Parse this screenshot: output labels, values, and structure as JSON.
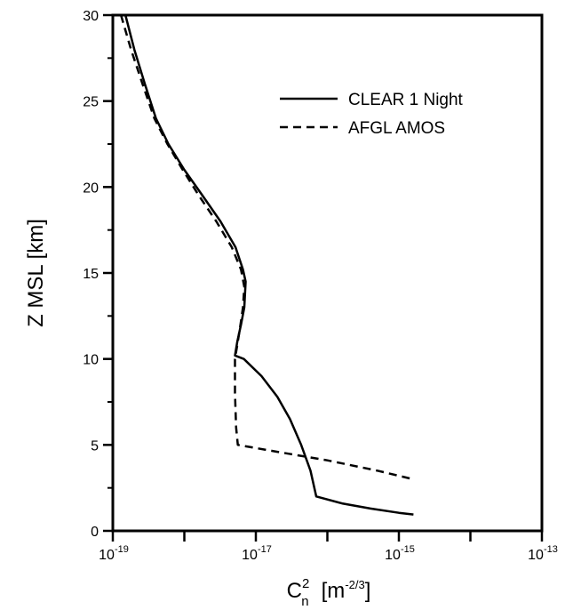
{
  "chart_data": {
    "type": "line",
    "ylabel": "Z MSL [km]",
    "xlabel_base": "C",
    "xlabel_sup": "2",
    "xlabel_sub": "n",
    "xlabel_units_open": "[m",
    "xlabel_units_exp": "-2/3",
    "xlabel_units_close": "]",
    "xscale": "log",
    "xlim": [
      1e-19,
      1e-13
    ],
    "ylim": [
      0,
      30
    ],
    "x_ticks": [
      {
        "base": "10",
        "exp": "-19",
        "value": 1e-19
      },
      {
        "base": "10",
        "exp": "-17",
        "value": 1e-17
      },
      {
        "base": "10",
        "exp": "-15",
        "value": 1e-15
      },
      {
        "base": "10",
        "exp": "-13",
        "value": 1e-13
      }
    ],
    "y_ticks": [
      "0",
      "5",
      "10",
      "15",
      "20",
      "25",
      "30"
    ],
    "legend_position": "top-right",
    "grid": false,
    "series": [
      {
        "name": "CLEAR 1 Night",
        "style": "solid",
        "points": [
          [
            1.5e-19,
            30
          ],
          [
            2e-19,
            28
          ],
          [
            2.8e-19,
            26
          ],
          [
            4e-19,
            24
          ],
          [
            6e-19,
            22.5
          ],
          [
            1e-18,
            21
          ],
          [
            1.8e-18,
            19.5
          ],
          [
            3.2e-18,
            18
          ],
          [
            5.2e-18,
            16.5
          ],
          [
            6.6e-18,
            15.2
          ],
          [
            7.2e-18,
            14.5
          ],
          [
            6.9e-18,
            13
          ],
          [
            6.2e-18,
            12
          ],
          [
            5.5e-18,
            11
          ],
          [
            5.1e-18,
            10.2
          ],
          [
            6.8e-18,
            10
          ],
          [
            1.2e-17,
            9
          ],
          [
            2e-17,
            7.8
          ],
          [
            3e-17,
            6.5
          ],
          [
            4.3e-17,
            5
          ],
          [
            5.8e-17,
            3.5
          ],
          [
            7e-17,
            2
          ],
          [
            1.6e-16,
            1.6
          ],
          [
            4e-16,
            1.3
          ],
          [
            1e-15,
            1.05
          ],
          [
            1.6e-15,
            0.95
          ]
        ]
      },
      {
        "name": "AFGL AMOS",
        "style": "dashed",
        "points": [
          [
            1.3e-19,
            30
          ],
          [
            1.8e-19,
            28
          ],
          [
            2.6e-19,
            26
          ],
          [
            3.8e-19,
            24
          ],
          [
            5.8e-19,
            22.5
          ],
          [
            9.5e-19,
            21
          ],
          [
            1.6e-18,
            19.5
          ],
          [
            2.8e-18,
            18
          ],
          [
            4.6e-18,
            16.5
          ],
          [
            6.2e-18,
            15.2
          ],
          [
            6.9e-18,
            14.2
          ],
          [
            6.6e-18,
            13
          ],
          [
            6.1e-18,
            12
          ],
          [
            5.6e-18,
            11
          ],
          [
            5.2e-18,
            10.2
          ],
          [
            5.1e-18,
            10
          ],
          [
            5.1e-18,
            8
          ],
          [
            5.3e-18,
            6
          ],
          [
            5.6e-18,
            5
          ],
          [
            2e-17,
            4.6
          ],
          [
            1e-16,
            4.1
          ],
          [
            5e-16,
            3.5
          ],
          [
            1.6e-15,
            3
          ]
        ]
      }
    ]
  }
}
